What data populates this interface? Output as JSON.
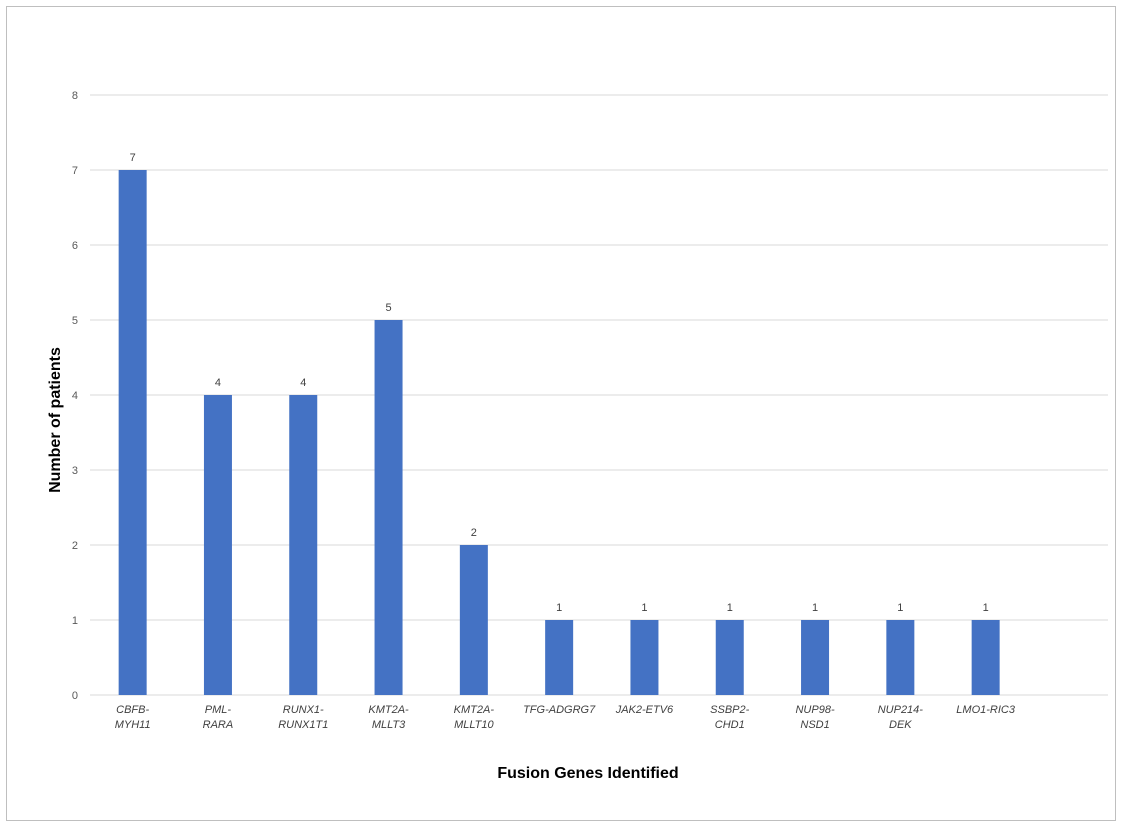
{
  "chart_data": {
    "type": "bar",
    "categories": [
      [
        "CBFB-",
        "MYH11"
      ],
      [
        "PML-",
        "RARA"
      ],
      [
        "RUNX1-",
        "RUNX1T1"
      ],
      [
        "KMT2A-",
        "MLLT3"
      ],
      [
        "KMT2A-",
        "MLLT10"
      ],
      [
        "TFG-ADGRG7"
      ],
      [
        "JAK2-ETV6"
      ],
      [
        "SSBP2-",
        "CHD1"
      ],
      [
        "NUP98-",
        "NSD1"
      ],
      [
        "NUP214-",
        "DEK"
      ],
      [
        "LMO1-RIC3"
      ]
    ],
    "values": [
      7,
      4,
      4,
      5,
      2,
      1,
      1,
      1,
      1,
      1,
      1
    ],
    "xlabel": "Fusion Genes Identified",
    "ylabel": "Number of patients",
    "ylim": [
      0,
      8
    ],
    "yticks": [
      0,
      1,
      2,
      3,
      4,
      5,
      6,
      7,
      8
    ],
    "grid": true,
    "data_labels": true,
    "bar_color": "#4472c4",
    "grid_color": "#d9d9d9"
  }
}
